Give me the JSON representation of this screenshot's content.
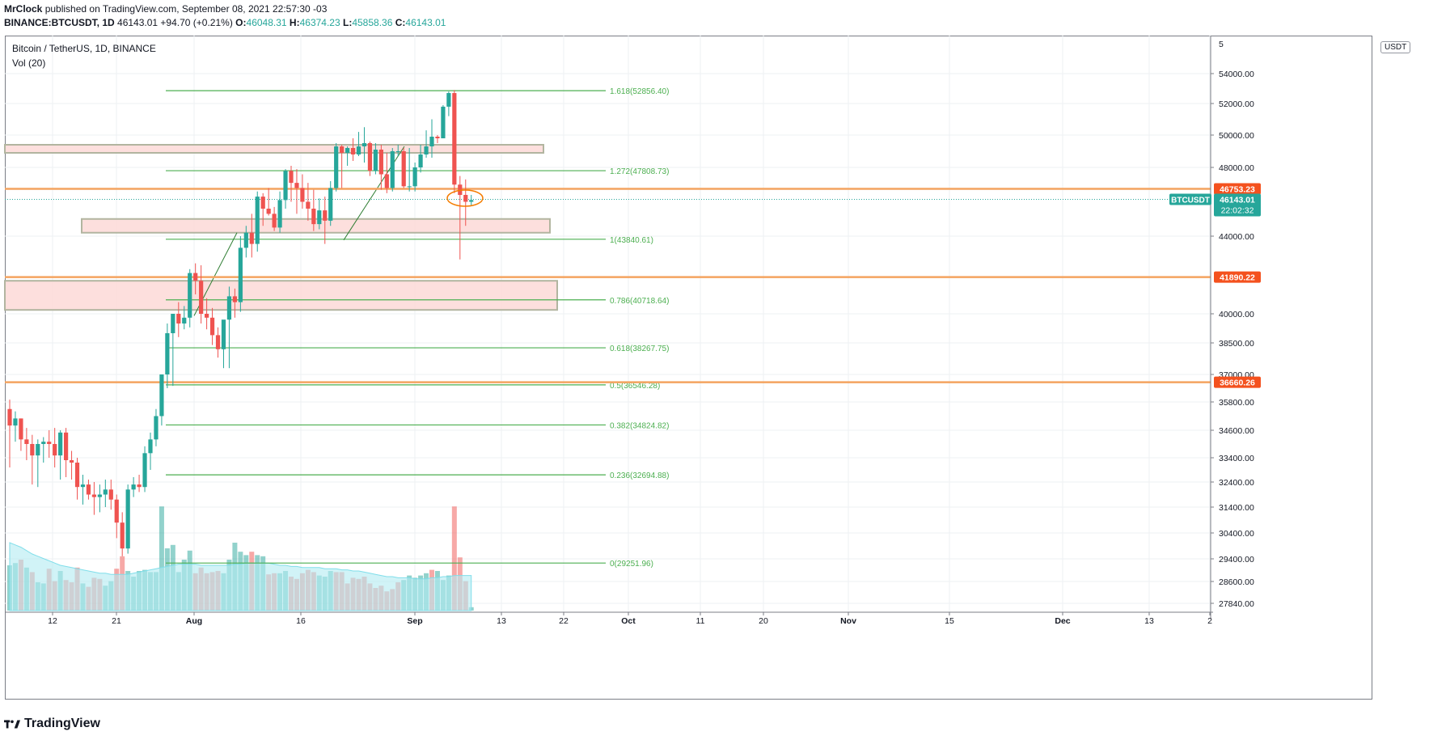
{
  "header": {
    "author": "MrClock",
    "published": "published on TradingView.com, September 08, 2021 22:57:30 -03",
    "symbol": "BINANCE:BTCUSDT, 1D",
    "last": "46143.01",
    "change": "+94.70 (+0.21%)",
    "o_label": "O:",
    "o": "46048.31",
    "h_label": "H:",
    "h": "46374.23",
    "l_label": "L:",
    "l": "45858.36",
    "c_label": "C:",
    "c": "46143.01"
  },
  "legend": {
    "title": "Bitcoin / TetherUS, 1D, BINANCE",
    "indicator": "Vol (20)"
  },
  "currency_badge": "USDT",
  "brand": "TradingView",
  "colors": {
    "up": "#26a69a",
    "down": "#ef5350",
    "fib": "#4caf50",
    "level": "#f57c00",
    "zone_fill": "#fdd9d7",
    "zone_stroke": "#b2b5a0",
    "ma": "#b2ebf2"
  },
  "chart_data": {
    "type": "candlestick",
    "title": "Bitcoin / TetherUS, 1D, BINANCE",
    "x_tick_labels": [
      "12",
      "21",
      "Aug",
      "16",
      "Sep",
      "13",
      "22",
      "Oct",
      "11",
      "20",
      "Nov",
      "15",
      "Dec",
      "13",
      "2"
    ],
    "y_tick_labels": [
      "54000.00",
      "52000.00",
      "50000.00",
      "48000.00",
      "44000.00",
      "40000.00",
      "38500.00",
      "37000.00",
      "35800.00",
      "34600.00",
      "33400.00",
      "32400.00",
      "31400.00",
      "30400.00",
      "29400.00",
      "28600.00",
      "27840.00"
    ],
    "y_top_partial": "5",
    "price_labels": [
      {
        "text": "46753.23",
        "price": 46753.23,
        "kind": "level"
      },
      {
        "text": "41890.22",
        "price": 41890.22,
        "kind": "level"
      },
      {
        "text": "36660.26",
        "price": 36660.26,
        "kind": "level"
      },
      {
        "text": "46143.01",
        "price": 46143.01,
        "kind": "last"
      }
    ],
    "last_symbol": "BTCUSDT",
    "countdown": "22:02:32",
    "fib_levels": [
      {
        "label": "1.618(52856.40)",
        "price": 52856.4
      },
      {
        "label": "1.272(47808.73)",
        "price": 47808.73
      },
      {
        "label": "1(43840.61)",
        "price": 43840.61
      },
      {
        "label": "0.786(40718.64)",
        "price": 40718.64
      },
      {
        "label": "0.618(38267.75)",
        "price": 38267.75
      },
      {
        "label": "0.5(36546.28)",
        "price": 36546.28
      },
      {
        "label": "0.382(34824.82)",
        "price": 34824.82
      },
      {
        "label": "0.236(32694.88)",
        "price": 32694.88
      },
      {
        "label": "0(29251.96)",
        "price": 29251.96
      }
    ],
    "zones": [
      {
        "from": 48900,
        "to": 49400
      },
      {
        "from": 44200,
        "to": 45000
      },
      {
        "from": 40200,
        "to": 41700
      }
    ],
    "candles": [
      [
        35500,
        35900,
        33000,
        34800
      ],
      [
        34800,
        35400,
        34100,
        35100
      ],
      [
        35100,
        35100,
        33700,
        34200
      ],
      [
        34200,
        34700,
        33300,
        34000
      ],
      [
        34000,
        34400,
        32300,
        33500
      ],
      [
        33500,
        34200,
        32200,
        34000
      ],
      [
        34000,
        34300,
        33200,
        34100
      ],
      [
        34100,
        34600,
        33400,
        34000
      ],
      [
        34000,
        34700,
        33000,
        33500
      ],
      [
        33500,
        34600,
        32500,
        34500
      ],
      [
        34500,
        34700,
        32600,
        33300
      ],
      [
        33300,
        33700,
        32500,
        33200
      ],
      [
        33200,
        33400,
        31700,
        32200
      ],
      [
        32200,
        32700,
        31500,
        32300
      ],
      [
        32300,
        32500,
        31700,
        31900
      ],
      [
        31900,
        32400,
        31100,
        31800
      ],
      [
        31800,
        32300,
        31200,
        31900
      ],
      [
        31900,
        32500,
        31400,
        32100
      ],
      [
        32100,
        32500,
        31300,
        31700
      ],
      [
        31700,
        31900,
        30200,
        30800
      ],
      [
        30800,
        31200,
        29500,
        29800
      ],
      [
        29800,
        32300,
        29600,
        32100
      ],
      [
        32100,
        32600,
        31800,
        32300
      ],
      [
        32300,
        32700,
        32000,
        32200
      ],
      [
        32200,
        33900,
        32000,
        33600
      ],
      [
        33600,
        34500,
        32900,
        34200
      ],
      [
        34200,
        35500,
        33900,
        35200
      ],
      [
        35200,
        37000,
        34800,
        37000
      ],
      [
        37000,
        39500,
        36400,
        39000
      ],
      [
        39000,
        40000,
        36500,
        40000
      ],
      [
        40000,
        40600,
        38800,
        39500
      ],
      [
        39500,
        40400,
        39200,
        39800
      ],
      [
        39800,
        42300,
        39300,
        42100
      ],
      [
        42100,
        42600,
        41000,
        41700
      ],
      [
        41700,
        42500,
        39500,
        40000
      ],
      [
        40000,
        40800,
        39200,
        39800
      ],
      [
        39800,
        40300,
        38400,
        38900
      ],
      [
        38900,
        39300,
        37800,
        38200
      ],
      [
        38200,
        39500,
        37300,
        39700
      ],
      [
        39700,
        41400,
        37300,
        40900
      ],
      [
        40900,
        41300,
        39800,
        40600
      ],
      [
        40600,
        44000,
        40100,
        43400
      ],
      [
        43400,
        44600,
        42900,
        44200
      ],
      [
        44200,
        45300,
        42900,
        43600
      ],
      [
        43600,
        46600,
        43200,
        46300
      ],
      [
        46300,
        46500,
        44600,
        45600
      ],
      [
        45600,
        46800,
        45200,
        45300
      ],
      [
        45300,
        45700,
        44300,
        44500
      ],
      [
        44500,
        46600,
        44200,
        46100
      ],
      [
        46100,
        47900,
        45600,
        47800
      ],
      [
        47800,
        48100,
        46000,
        47100
      ],
      [
        47100,
        47900,
        45300,
        46800
      ],
      [
        46800,
        47600,
        45600,
        46000
      ],
      [
        46000,
        47100,
        44900,
        45600
      ],
      [
        45600,
        46700,
        44300,
        44700
      ],
      [
        44700,
        46200,
        44400,
        45500
      ],
      [
        45500,
        46300,
        43600,
        44900
      ],
      [
        44900,
        47200,
        44600,
        46800
      ],
      [
        46800,
        49500,
        46600,
        49300
      ],
      [
        49300,
        49400,
        46800,
        48900
      ],
      [
        48900,
        49300,
        48100,
        49200
      ],
      [
        49200,
        49800,
        48400,
        48800
      ],
      [
        48800,
        50200,
        48700,
        49300
      ],
      [
        49300,
        50500,
        48300,
        49500
      ],
      [
        49500,
        49600,
        47500,
        47800
      ],
      [
        47800,
        49500,
        47600,
        49100
      ],
      [
        49100,
        49400,
        46700,
        47600
      ],
      [
        47600,
        48900,
        46500,
        46800
      ],
      [
        46800,
        49200,
        46600,
        49000
      ],
      [
        49000,
        49400,
        48700,
        49000
      ],
      [
        49000,
        49200,
        46800,
        46900
      ],
      [
        46900,
        49200,
        46600,
        46900
      ],
      [
        46900,
        48300,
        46600,
        48000
      ],
      [
        48000,
        49400,
        47700,
        48800
      ],
      [
        48800,
        50300,
        48600,
        49300
      ],
      [
        49300,
        51000,
        48600,
        49900
      ],
      [
        49900,
        50000,
        49500,
        49800
      ],
      [
        49800,
        51900,
        49800,
        51800
      ],
      [
        51800,
        52800,
        51200,
        52700
      ],
      [
        52700,
        52900,
        46500,
        47000
      ],
      [
        47000,
        47500,
        42800,
        46400
      ],
      [
        46400,
        47300,
        44600,
        46000
      ],
      [
        46000,
        46400,
        45800,
        46100
      ]
    ],
    "volume_scale": 100,
    "volumes": [
      [
        0.4,
        1
      ],
      [
        0.42,
        1
      ],
      [
        0.45,
        0
      ],
      [
        0.38,
        1
      ],
      [
        0.34,
        0
      ],
      [
        0.25,
        1
      ],
      [
        0.24,
        1
      ],
      [
        0.37,
        0
      ],
      [
        0.26,
        0
      ],
      [
        0.35,
        1
      ],
      [
        0.27,
        0
      ],
      [
        0.25,
        0
      ],
      [
        0.38,
        0
      ],
      [
        0.24,
        1
      ],
      [
        0.21,
        0
      ],
      [
        0.29,
        0
      ],
      [
        0.28,
        0
      ],
      [
        0.22,
        1
      ],
      [
        0.26,
        1
      ],
      [
        0.37,
        0
      ],
      [
        0.48,
        0
      ],
      [
        0.35,
        1
      ],
      [
        0.3,
        1
      ],
      [
        0.35,
        1
      ],
      [
        0.36,
        1
      ],
      [
        0.34,
        1
      ],
      [
        0.34,
        1
      ],
      [
        0.92,
        1
      ],
      [
        0.55,
        1
      ],
      [
        0.58,
        1
      ],
      [
        0.34,
        1
      ],
      [
        0.45,
        1
      ],
      [
        0.53,
        1
      ],
      [
        0.33,
        0
      ],
      [
        0.38,
        0
      ],
      [
        0.33,
        0
      ],
      [
        0.34,
        0
      ],
      [
        0.35,
        0
      ],
      [
        0.33,
        1
      ],
      [
        0.45,
        1
      ],
      [
        0.6,
        1
      ],
      [
        0.52,
        1
      ],
      [
        0.49,
        1
      ],
      [
        0.52,
        0
      ],
      [
        0.49,
        1
      ],
      [
        0.48,
        1
      ],
      [
        0.32,
        0
      ],
      [
        0.33,
        0
      ],
      [
        0.33,
        1
      ],
      [
        0.35,
        1
      ],
      [
        0.3,
        0
      ],
      [
        0.28,
        0
      ],
      [
        0.33,
        0
      ],
      [
        0.36,
        0
      ],
      [
        0.34,
        0
      ],
      [
        0.31,
        1
      ],
      [
        0.3,
        1
      ],
      [
        0.35,
        1
      ],
      [
        0.34,
        0
      ],
      [
        0.34,
        0
      ],
      [
        0.24,
        0
      ],
      [
        0.29,
        0
      ],
      [
        0.28,
        0
      ],
      [
        0.3,
        0
      ],
      [
        0.24,
        0
      ],
      [
        0.2,
        0
      ],
      [
        0.22,
        0
      ],
      [
        0.17,
        0
      ],
      [
        0.19,
        0
      ],
      [
        0.25,
        0
      ],
      [
        0.27,
        1
      ],
      [
        0.31,
        1
      ],
      [
        0.29,
        1
      ],
      [
        0.31,
        1
      ],
      [
        0.33,
        1
      ],
      [
        0.36,
        0
      ],
      [
        0.35,
        1
      ],
      [
        0.27,
        1
      ],
      [
        0.31,
        1
      ],
      [
        0.92,
        0
      ],
      [
        0.47,
        0
      ],
      [
        0.26,
        0
      ],
      [
        0.03,
        1
      ]
    ],
    "volume_ma": [
      0.6,
      0.58,
      0.56,
      0.53,
      0.5,
      0.48,
      0.46,
      0.44,
      0.42,
      0.4,
      0.39,
      0.38,
      0.37,
      0.36,
      0.35,
      0.34,
      0.33,
      0.33,
      0.32,
      0.32,
      0.32,
      0.32,
      0.33,
      0.34,
      0.35,
      0.36,
      0.37,
      0.38,
      0.39,
      0.4,
      0.41,
      0.41,
      0.41,
      0.41,
      0.4,
      0.4,
      0.4,
      0.4,
      0.4,
      0.4,
      0.41,
      0.41,
      0.42,
      0.42,
      0.42,
      0.42,
      0.42,
      0.41,
      0.4,
      0.4,
      0.39,
      0.39,
      0.38,
      0.38,
      0.38,
      0.38,
      0.37,
      0.37,
      0.37,
      0.36,
      0.36,
      0.35,
      0.35,
      0.34,
      0.33,
      0.32,
      0.31,
      0.3,
      0.3,
      0.29,
      0.29,
      0.29,
      0.28,
      0.28,
      0.28,
      0.29,
      0.29,
      0.3,
      0.3,
      0.31,
      0.31,
      0.31,
      0.31
    ]
  }
}
